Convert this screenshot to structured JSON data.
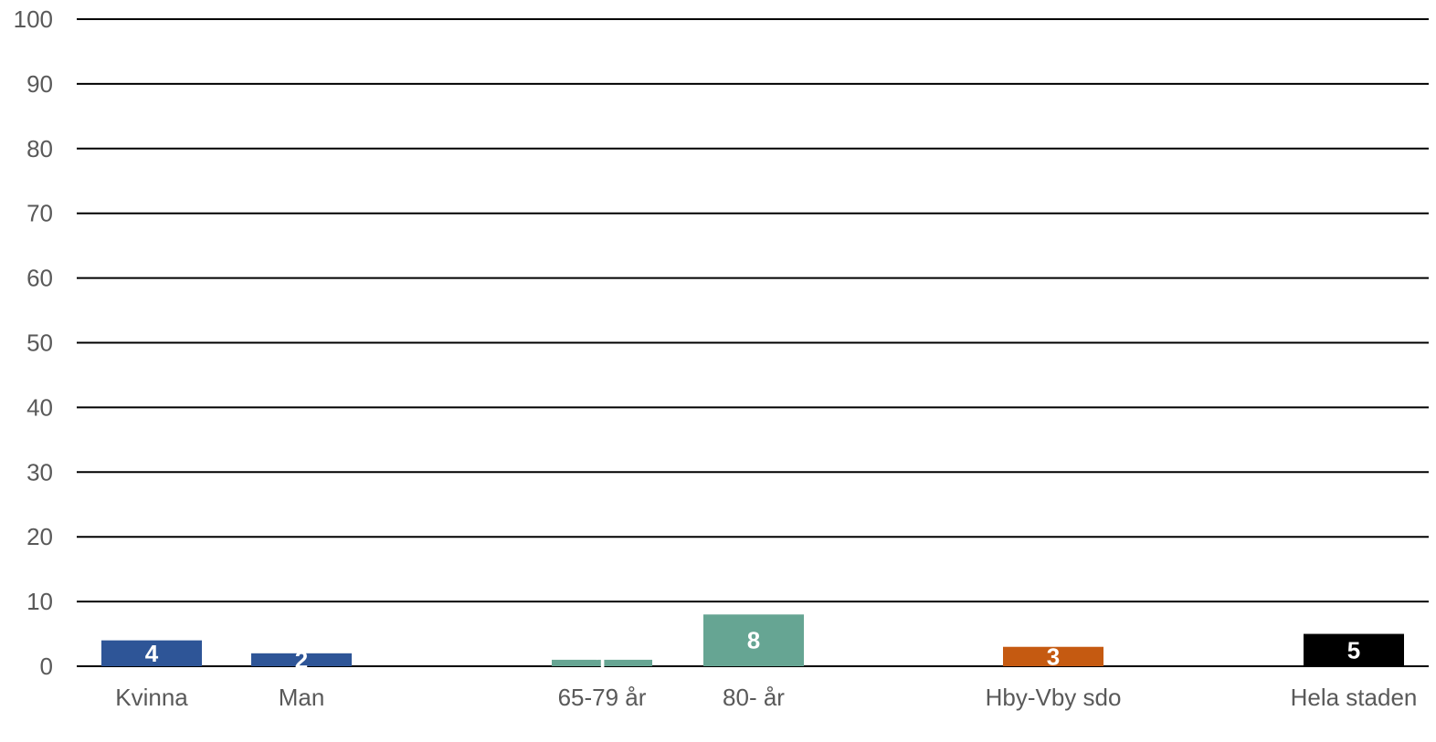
{
  "chart_data": {
    "type": "bar",
    "title": "",
    "xlabel": "",
    "ylabel": "",
    "ylim": [
      0,
      100
    ],
    "yticks": [
      0,
      10,
      20,
      30,
      40,
      50,
      60,
      70,
      80,
      90,
      100
    ],
    "grid": true,
    "legend": "none",
    "categories": [
      "Kvinna",
      "Man",
      "65-79 år",
      "80- år",
      "Hby-Vby sdo",
      "Hela staden"
    ],
    "values": [
      4,
      2,
      1,
      8,
      3,
      5
    ],
    "data_labels": [
      "4",
      "2",
      "1",
      "8",
      "3",
      "5"
    ],
    "colors": [
      "#2E5597",
      "#2E5597",
      "#66A593",
      "#66A593",
      "#C55A11",
      "#000000"
    ]
  }
}
